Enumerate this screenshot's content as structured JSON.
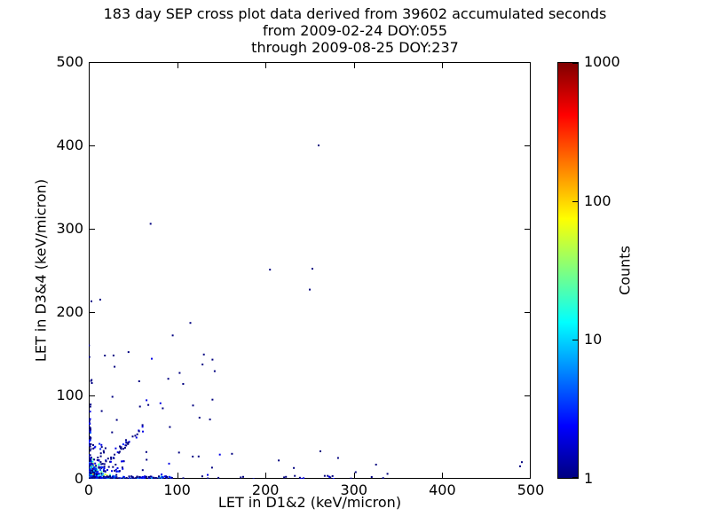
{
  "figure": {
    "background": "#ffffff"
  },
  "chart_data": {
    "type": "scatter",
    "title_lines": [
      "183 day SEP cross plot data derived from 39602 accumulated seconds",
      "from 2009-02-24 DOY:055",
      "through 2009-08-25 DOY:237"
    ],
    "xlabel": "LET in D1&2 (keV/micron)",
    "ylabel": "LET in D3&4 (keV/micron)",
    "xlim": [
      0,
      500
    ],
    "ylim": [
      0,
      500
    ],
    "xticks": [
      0,
      100,
      200,
      300,
      400,
      500
    ],
    "yticks": [
      0,
      100,
      200,
      300,
      400,
      500
    ],
    "grid": false,
    "axes_color": "#000000",
    "marker": "square",
    "marker_size_px": 2,
    "colorbar": {
      "label": "Counts",
      "scale": "log",
      "min": 1,
      "max": 1000,
      "ticks": [
        1,
        10,
        100,
        1000
      ],
      "colormap": "jet",
      "low_color": "#000080",
      "high_color": "#800000"
    },
    "seed": 7,
    "points_outliers": [
      [
        260,
        400
      ],
      [
        253,
        252
      ],
      [
        205,
        251
      ],
      [
        250,
        227
      ],
      [
        13,
        215
      ],
      [
        3,
        213
      ],
      [
        70,
        306
      ],
      [
        95,
        172
      ],
      [
        115,
        187
      ],
      [
        140,
        143
      ],
      [
        45,
        152
      ],
      [
        28,
        148
      ],
      [
        90,
        120
      ],
      [
        57,
        117
      ],
      [
        140,
        95
      ],
      [
        118,
        88
      ],
      [
        162,
        30
      ],
      [
        488,
        15
      ],
      [
        490,
        20
      ],
      [
        325,
        17
      ],
      [
        282,
        25
      ],
      [
        262,
        33
      ],
      [
        215,
        22
      ],
      [
        232,
        13
      ],
      [
        302,
        8
      ],
      [
        338,
        6
      ]
    ],
    "point_clusters": [
      {
        "id": "origin-dense-blob",
        "shape": "exp",
        "scale": 5.5,
        "clip": 48,
        "n": 300,
        "count_pow": 2.0
      },
      {
        "id": "bottom-band-dense",
        "shape": "uniform",
        "x": [
          0,
          95
        ],
        "y": [
          0,
          3
        ],
        "n": 130,
        "count_pow": 0.9
      },
      {
        "id": "bottom-band-sparse",
        "shape": "uniform",
        "x": [
          95,
          335
        ],
        "y": [
          0,
          4
        ],
        "n": 22,
        "count_pow": 0.3
      },
      {
        "id": "left-band-dense",
        "shape": "uniform",
        "x": [
          0,
          3
        ],
        "y": [
          3,
          90
        ],
        "n": 42,
        "count_pow": 0.6
      },
      {
        "id": "left-band-sparse",
        "shape": "uniform",
        "x": [
          0,
          4
        ],
        "y": [
          90,
          160
        ],
        "n": 5,
        "count_pow": 0
      },
      {
        "id": "diagonal-band",
        "shape": "diag",
        "x": [
          4,
          62
        ],
        "jitter": 5,
        "n": 42,
        "count_pow": 0.5
      },
      {
        "id": "lower-left-scatter",
        "shape": "uniform",
        "x": [
          4,
          150
        ],
        "y": [
          4,
          150
        ],
        "n": 36,
        "count_pow": 0.3
      },
      {
        "id": "near-origin-halo",
        "shape": "uniform",
        "x": [
          0,
          42
        ],
        "y": [
          0,
          42
        ],
        "n": 60,
        "count_pow": 0.5
      }
    ]
  }
}
